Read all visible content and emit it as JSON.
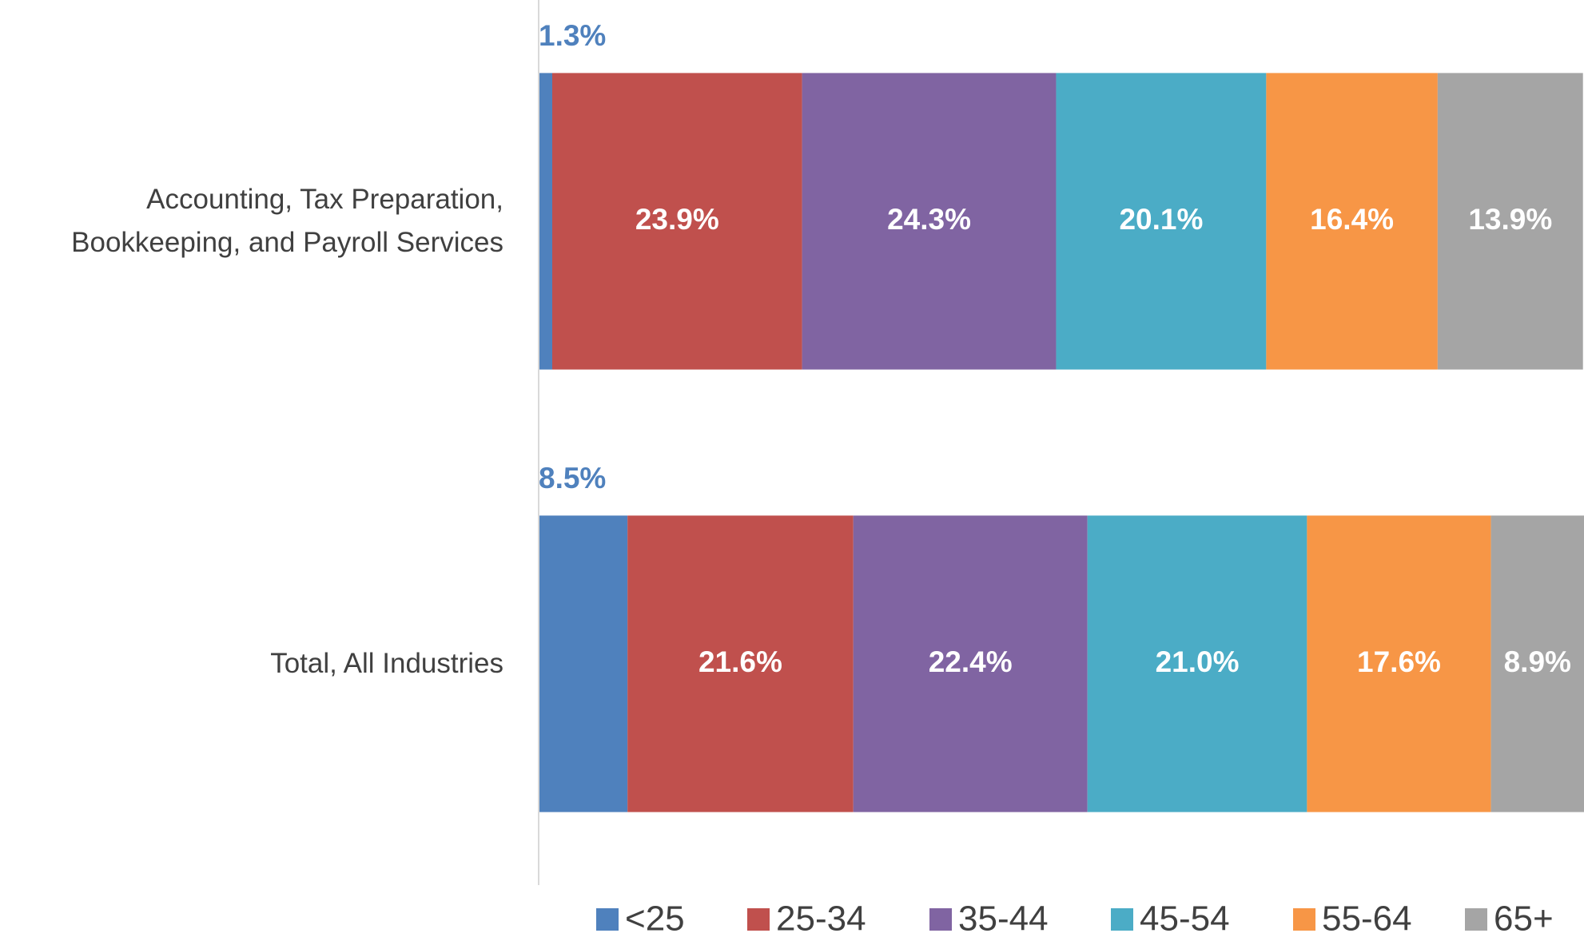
{
  "chart_data": {
    "type": "stacked_barh",
    "categories": [
      "Accounting, Tax Preparation, Bookkeeping, and Payroll Services",
      "Total, All Industries"
    ],
    "series": [
      {
        "name": "<25",
        "color": "#4f81bd",
        "values": [
          1.3,
          8.5
        ],
        "value_labels": [
          "1.3%",
          "8.5%"
        ]
      },
      {
        "name": "25-34",
        "color": "#c0504d",
        "values": [
          23.9,
          21.6
        ],
        "value_labels": [
          "23.9%",
          "21.6%"
        ]
      },
      {
        "name": "35-44",
        "color": "#8064a2",
        "values": [
          24.3,
          22.4
        ],
        "value_labels": [
          "24.3%",
          "22.4%"
        ]
      },
      {
        "name": "45-54",
        "color": "#4bacc6",
        "values": [
          20.1,
          21.0
        ],
        "value_labels": [
          "20.1%",
          "21.0%"
        ]
      },
      {
        "name": "55-64",
        "color": "#f79646",
        "values": [
          16.4,
          17.6
        ],
        "value_labels": [
          "16.4%",
          "17.6%"
        ]
      },
      {
        "name": "65+",
        "color": "#a5a5a5",
        "values": [
          13.9,
          8.9
        ],
        "value_labels": [
          "13.9%",
          "8.9%"
        ]
      }
    ],
    "xlim": [
      0,
      100
    ],
    "legend": "bottom"
  }
}
